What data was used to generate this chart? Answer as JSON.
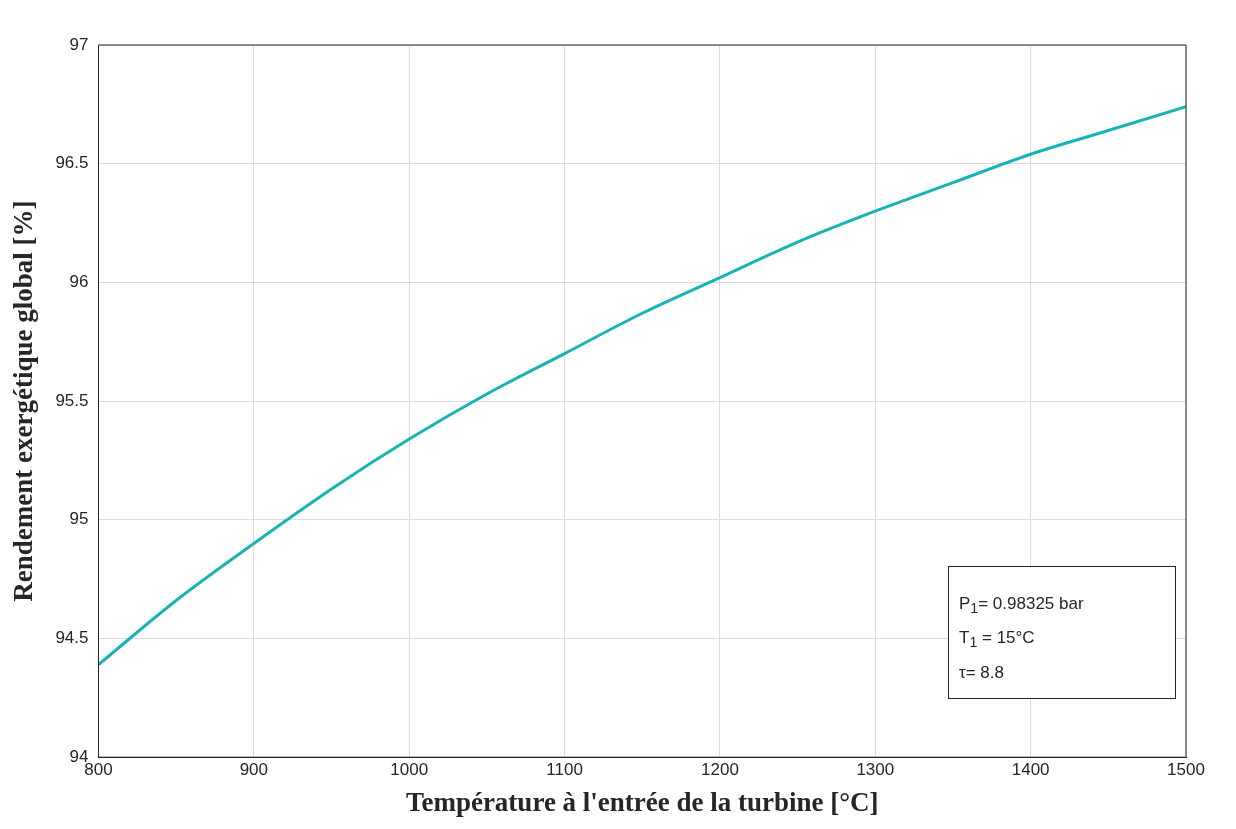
{
  "chart_data": {
    "type": "line",
    "xlabel": "Température à l'entrée de la turbine [°C]",
    "ylabel": "Rendement exergétique global [%]",
    "x": [
      800,
      850,
      900,
      950,
      1000,
      1050,
      1100,
      1150,
      1200,
      1250,
      1300,
      1350,
      1400,
      1450,
      1500
    ],
    "series": [
      {
        "color": "#1ab3b3",
        "values": [
          94.39,
          94.66,
          94.9,
          95.13,
          95.34,
          95.53,
          95.7,
          95.87,
          96.02,
          96.17,
          96.3,
          96.42,
          96.54,
          96.64,
          96.74
        ]
      }
    ],
    "xlim": [
      800,
      1500
    ],
    "xticks": [
      800,
      900,
      1000,
      1100,
      1200,
      1300,
      1400,
      1500
    ],
    "ylim": [
      94,
      97
    ],
    "yticks": [
      94,
      94.5,
      95,
      95.5,
      96,
      96.5,
      97
    ],
    "grid": true,
    "legend": false,
    "marker": "none",
    "line_style": "solid",
    "annotations": [
      "P$_{1}$= 0.98325 bar",
      "T$_{1}$ = 15°C",
      "τ= 8.8"
    ]
  }
}
